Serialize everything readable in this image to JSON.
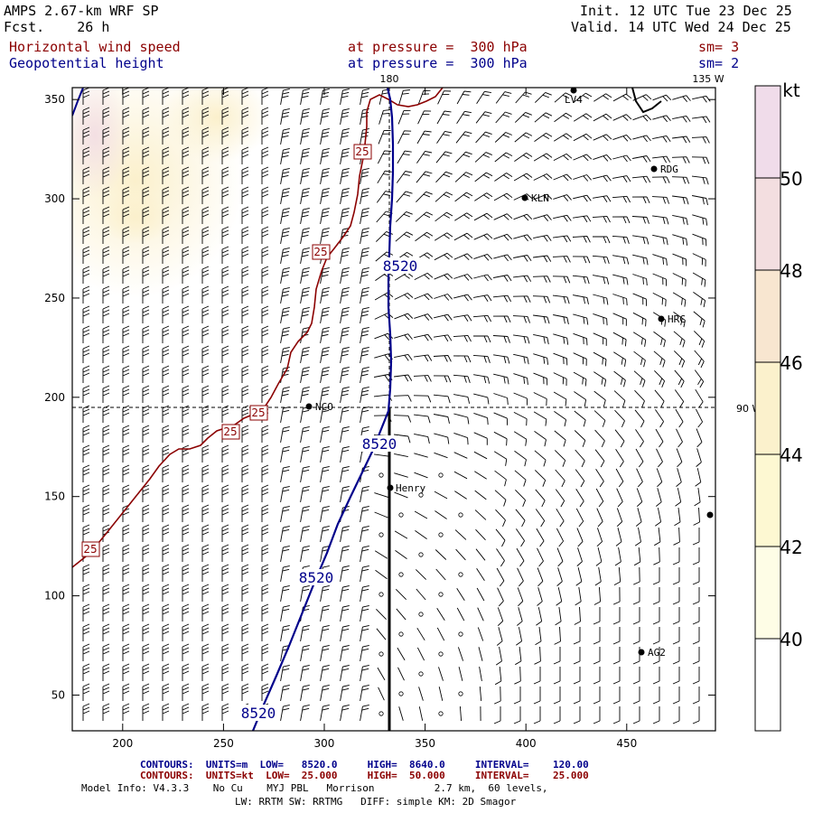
{
  "header": {
    "model": "AMPS 2.67-km WRF SP",
    "fcst": "Fcst.    26 h",
    "init": "Init. 12 UTC Tue 23 Dec 25",
    "valid": "Valid. 14 UTC Wed 24 Dec 25",
    "field1_name": "Horizontal wind speed",
    "field1_level": "at pressure =  300 hPa",
    "field1_sm": "sm= 3",
    "field2_name": "Geopotential height",
    "field2_level": "at pressure =  300 hPa",
    "field2_sm": "sm= 2"
  },
  "map": {
    "lon_label_180": "180",
    "lon_label_135w": "135 W",
    "lon_label_90w": "90 W",
    "x_ticks": [
      "200",
      "250",
      "300",
      "350",
      "400",
      "450"
    ],
    "y_ticks": [
      "350",
      "300",
      "250",
      "200",
      "150",
      "100",
      "50"
    ],
    "stations": [
      {
        "id": "stn-lv4",
        "name": "LV4"
      },
      {
        "id": "stn-rdg",
        "name": "RDG"
      },
      {
        "id": "stn-kln",
        "name": "KLN"
      },
      {
        "id": "stn-hrc",
        "name": "HRC"
      },
      {
        "id": "stn-nco",
        "name": "NCO"
      },
      {
        "id": "stn-henry",
        "name": "Henry"
      },
      {
        "id": "stn-ag2",
        "name": "AG2"
      },
      {
        "id": "stn-east",
        "name": ""
      }
    ],
    "height_contour_label": "8520",
    "wind_contour_label": "25"
  },
  "colorbar": {
    "unit": "kt",
    "levels": [
      "50",
      "48",
      "46",
      "44",
      "42",
      "40"
    ],
    "colors": [
      "#f0dcea",
      "#f3dee0",
      "#f8e6d0",
      "#fbf1cc",
      "#fdf8d2",
      "#fefde6",
      "#ffffff"
    ]
  },
  "footer": {
    "contours1": "CONTOURS:  UNITS=m  LOW=   8520.0     HIGH=  8640.0     INTERVAL=    120.00",
    "contours2": "CONTOURS:  UNITS=kt  LOW=  25.000     HIGH=  50.000     INTERVAL=    25.000",
    "model_info": "Model Info: V4.3.3    No Cu    MYJ PBL   Morrison          2.7 km,  60 levels,",
    "physics": "LW: RRTM SW: RRTMG   DIFF: simple KM: 2D Smagor"
  },
  "colors": {
    "wind_contour": "#8b0000",
    "height_contour": "#00008b",
    "barb": "#000000"
  }
}
